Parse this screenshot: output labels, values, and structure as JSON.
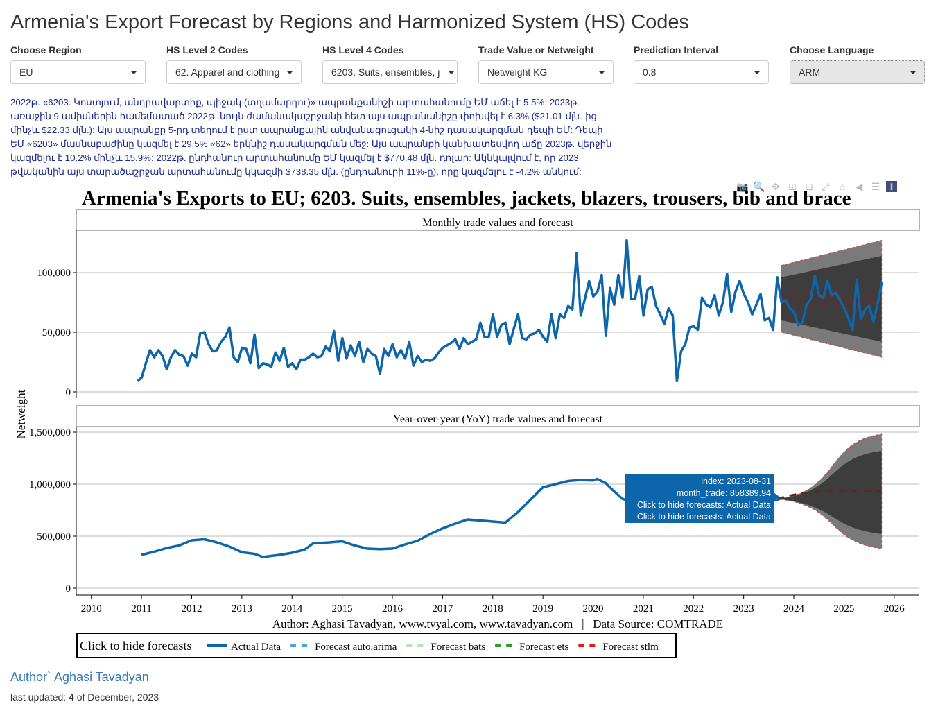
{
  "page": {
    "title": "Armenia's Export Forecast by Regions and Harmonized System (HS) Codes"
  },
  "controls": [
    {
      "label": "Choose Region",
      "value": "EU"
    },
    {
      "label": "HS Level 2 Codes",
      "value": "62. Apparel and clothing"
    },
    {
      "label": "HS Level 4 Codes",
      "value": "6203. Suits, ensembles, j"
    },
    {
      "label": "Trade Value or Netweight",
      "value": "Netweight KG"
    },
    {
      "label": "Prediction Interval",
      "value": "0.8"
    },
    {
      "label": "Choose Language",
      "value": "ARM"
    }
  ],
  "summary": "2022թ. «6203. Կոստյում, անդրավարտիք, պիջակ (տղամարդու)» ապրանքանիշի արտահանումը ԵՄ աճել է 5.5%: 2023թ. առաջին 9 ամիսներին համեմատած 2022թ. նույն ժամանակաշրջանի հետ այս ապրանանիշը փոխվել է 6.3% ($21.01 մլն.-ից մինչև $22.33 մլն.): Այս ապրանքը 5-րդ տեղում է ըստ ապրանքային անվանացուցակի 4-նիշ դասակարգման դեպի ԵՄ: Դեպի ԵՄ «6203» մասնաբաժինը կազմել է 29.5% «62» երկնիշ դասակարգման մեջ: Այս ապրանքի կանխատեսվող աճը 2023թ. վերջին կազմելու է 10.2% մինչև 15.9%: 2022թ. ընդհանուր արտահանումը ԵՄ կազմել է $770.48 մլն. դոլար: Ակնկալվում է, որ 2023 թվականին այս տարածաշրջան արտահանումը կկազմի $738.35 մլն. (ընդհանուրի 11%-ը), որը կազմելու է -4.2% անկում:",
  "modebar": [
    "camera-icon",
    "zoom-icon",
    "pan-icon",
    "zoom-in-icon",
    "zoom-out-icon",
    "autoscale-icon",
    "home-icon",
    "hover-closest-icon",
    "hover-compare-icon",
    "plotly-logo-icon"
  ],
  "chart_data": [
    {
      "type": "line",
      "title": "Armenia's Exports to EU; 6203. Suits, ensembles, jackets, blazers, trousers, bib and brace",
      "subtitle": "Monthly trade values and forecast",
      "ylabel": "Netweight",
      "xlabel": "",
      "ylim": [
        0,
        135000
      ],
      "yticks": [
        0,
        50000,
        100000
      ],
      "ytick_labels": [
        "0",
        "50,000",
        "100,000"
      ],
      "xlim": [
        2009.7,
        2026.5
      ],
      "grid": true,
      "actual": {
        "name": "Actual Data",
        "start": 2011.0,
        "step_months": 1,
        "values": [
          9000,
          12000,
          24000,
          35000,
          29000,
          35000,
          30000,
          19000,
          29000,
          35000,
          31000,
          30000,
          22000,
          32000,
          29000,
          49000,
          50000,
          40000,
          34000,
          35000,
          42000,
          46000,
          54000,
          29000,
          25000,
          37000,
          36000,
          24000,
          48000,
          20000,
          24000,
          23000,
          21000,
          33000,
          26000,
          37000,
          21000,
          24000,
          19000,
          27000,
          27000,
          29000,
          32000,
          29000,
          30000,
          38000,
          34000,
          51000,
          26000,
          45000,
          28000,
          39000,
          30000,
          42000,
          25000,
          36000,
          32000,
          30000,
          15000,
          36000,
          30000,
          40000,
          29000,
          35000,
          28000,
          42000,
          22000,
          30000,
          25000,
          27000,
          26000,
          28000,
          33000,
          37000,
          39000,
          41000,
          44000,
          36000,
          45000,
          40000,
          42000,
          44000,
          58000,
          46000,
          46000,
          65000,
          46000,
          56000,
          58000,
          40000,
          53000,
          65000,
          45000,
          44000,
          48000,
          49000,
          52000,
          46000,
          42000,
          65000,
          45000,
          65000,
          62000,
          72000,
          69000,
          116000,
          64000,
          78000,
          93000,
          80000,
          84000,
          98000,
          47000,
          87000,
          73000,
          98000,
          79000,
          127000,
          78000,
          78000,
          97000,
          64000,
          86000,
          88000,
          72000,
          65000,
          57000,
          70000,
          64000,
          9000,
          34000,
          40000,
          54000,
          55000,
          52000,
          79000,
          73000,
          71000,
          81000,
          64000,
          75000,
          99000,
          67000,
          84000,
          93000,
          82000,
          75000,
          65000,
          73000,
          82000,
          60000,
          62000,
          52000,
          96000,
          75000,
          77000,
          70000,
          67000,
          56000,
          58000,
          73000,
          78000,
          97000,
          81000,
          79000,
          93000,
          81000,
          83000,
          77000,
          70000,
          62000,
          52000,
          94000,
          61000,
          69000,
          72000,
          59000,
          74000,
          92000
        ]
      },
      "forecast": {
        "start": 2023.75,
        "end": 2025.75,
        "center": 78000,
        "band_outer_start": [
          50000,
          106000
        ],
        "band_outer_end": [
          29000,
          127000
        ],
        "band_inner_start": [
          60000,
          96000
        ],
        "band_inner_end": [
          42000,
          114000
        ]
      }
    },
    {
      "type": "line",
      "subtitle": "Year-over-year (YoY) trade values and forecast",
      "ylabel": "Netweight",
      "ylim": [
        -60000,
        1650000
      ],
      "yticks": [
        0,
        500000,
        1000000,
        1500000
      ],
      "ytick_labels": [
        "0",
        "500,000",
        "1,000,000",
        "1,500,000"
      ],
      "xticks": [
        2010,
        2011,
        2012,
        2013,
        2014,
        2015,
        2016,
        2017,
        2018,
        2019,
        2020,
        2021,
        2022,
        2023,
        2024,
        2025,
        2026
      ],
      "xlim": [
        2009.7,
        2026.5
      ],
      "grid": true,
      "actual": {
        "name": "Actual Data",
        "points": [
          [
            2011.0,
            320000
          ],
          [
            2011.25,
            350000
          ],
          [
            2011.5,
            385000
          ],
          [
            2011.75,
            410000
          ],
          [
            2012.0,
            460000
          ],
          [
            2012.25,
            470000
          ],
          [
            2012.5,
            440000
          ],
          [
            2012.75,
            400000
          ],
          [
            2013.0,
            345000
          ],
          [
            2013.25,
            330000
          ],
          [
            2013.42,
            300000
          ],
          [
            2013.75,
            320000
          ],
          [
            2014.0,
            340000
          ],
          [
            2014.25,
            370000
          ],
          [
            2014.42,
            430000
          ],
          [
            2014.75,
            440000
          ],
          [
            2015.0,
            450000
          ],
          [
            2015.25,
            410000
          ],
          [
            2015.5,
            380000
          ],
          [
            2015.75,
            375000
          ],
          [
            2016.0,
            380000
          ],
          [
            2016.25,
            420000
          ],
          [
            2016.5,
            455000
          ],
          [
            2016.75,
            520000
          ],
          [
            2017.0,
            575000
          ],
          [
            2017.25,
            620000
          ],
          [
            2017.5,
            660000
          ],
          [
            2017.75,
            650000
          ],
          [
            2018.0,
            640000
          ],
          [
            2018.25,
            630000
          ],
          [
            2018.5,
            730000
          ],
          [
            2018.75,
            850000
          ],
          [
            2019.0,
            970000
          ],
          [
            2019.25,
            1000000
          ],
          [
            2019.5,
            1030000
          ],
          [
            2019.75,
            1040000
          ],
          [
            2020.0,
            1035000
          ],
          [
            2020.08,
            1050000
          ],
          [
            2020.25,
            1010000
          ],
          [
            2020.42,
            930000
          ],
          [
            2020.58,
            860000
          ],
          [
            2020.75,
            830000
          ],
          [
            2023.67,
            858390
          ]
        ]
      },
      "forecast": {
        "start": 2023.67,
        "end": 2025.75,
        "center": 935000,
        "band_outer_end": [
          380000,
          1480000
        ],
        "band_inner_end": [
          520000,
          1320000
        ]
      },
      "tooltip": {
        "index": "2023-08-31",
        "month_trade": "858389.94",
        "lines": [
          "Click to hide forecasts: Actual Data",
          "Click to hide forecasts: Actual Data"
        ]
      },
      "caption": "Author: Aghasi Tavadyan, www.tvyal.com, www.tavadyan.com   |   Data Source: COMTRADE",
      "legend": {
        "title": "Click to hide forecasts",
        "position": "bottom-left",
        "items": [
          {
            "name": "Actual Data",
            "color": "#0e66aa",
            "dash": "solid"
          },
          {
            "name": "Forecast auto.arima",
            "color": "#4aa6d8",
            "dash": "dash"
          },
          {
            "name": "Forecast bats",
            "color": "#b7e2b1",
            "dash": "dash"
          },
          {
            "name": "Forecast ets",
            "color": "#2ca02c",
            "dash": "dash"
          },
          {
            "name": "Forecast stlm",
            "color": "#e31a1c",
            "dash": "dash"
          }
        ]
      }
    }
  ],
  "footer": {
    "author": "Author` Aghasi Tavadyan",
    "updated": "last updated: 4 of December, 2023"
  },
  "colors": {
    "actual": "#0e66aa",
    "band": "#3d3d3d",
    "summary_text": "#1a2a8c",
    "tooltip_bg": "#0e66aa"
  }
}
